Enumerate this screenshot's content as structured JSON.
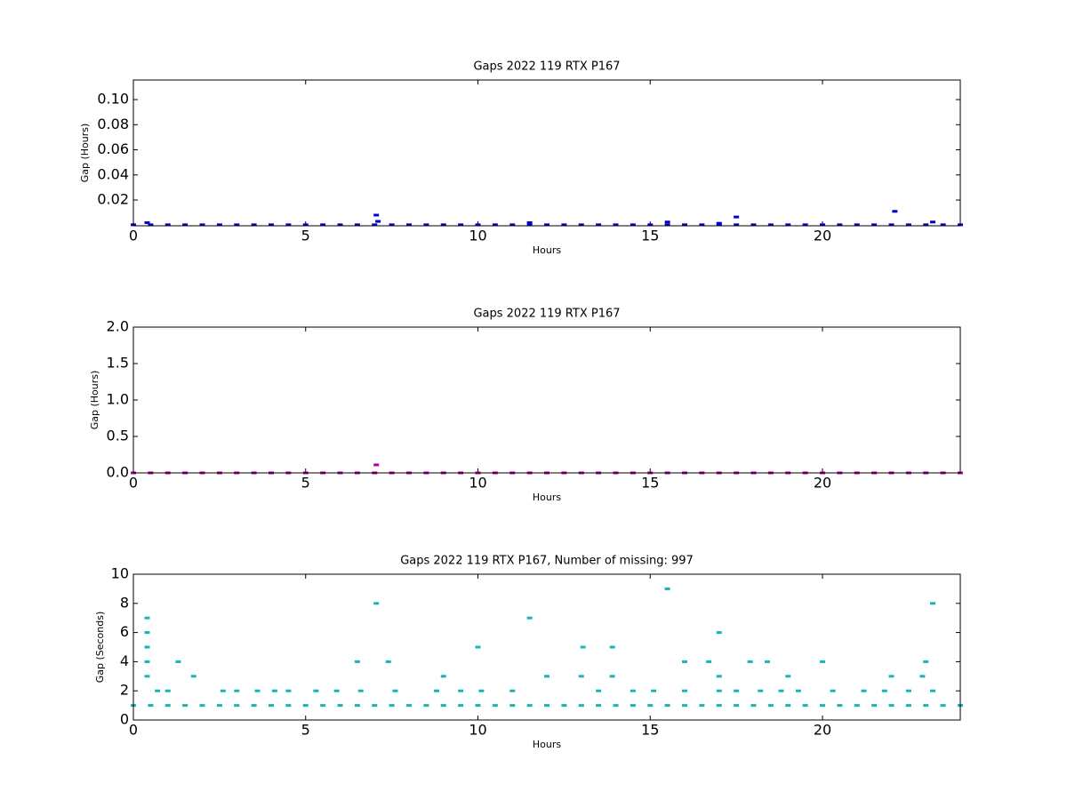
{
  "chart_data": [
    {
      "type": "scatter",
      "title": "Gaps 2022 119 RTX  P167",
      "xlabel": "Hours",
      "ylabel": "Gap (Hours)",
      "color": "#0000cc",
      "xlim": [
        0,
        24
      ],
      "ylim": [
        -0.0005,
        0.1156
      ],
      "xticks": [
        0,
        5,
        10,
        15,
        20
      ],
      "yticks": [
        0.02,
        0.04,
        0.06,
        0.08,
        {
          "value": 0.1,
          "label": "0.10"
        }
      ],
      "x": [
        0,
        0.5,
        1,
        1.5,
        2,
        2.5,
        3,
        3.5,
        4,
        4.5,
        5,
        5.5,
        6,
        6.5,
        7,
        7.5,
        8,
        8.5,
        9,
        9.5,
        10,
        10.5,
        11,
        11.5,
        12,
        12.5,
        13,
        13.5,
        14,
        14.5,
        15,
        15.5,
        16,
        16.5,
        17,
        17.5,
        18,
        18.5,
        19,
        19.5,
        20,
        20.5,
        21,
        21.5,
        22,
        22.5,
        23,
        23.5,
        24,
        0.4,
        7.05,
        7.1,
        11.5,
        15.5,
        17,
        17.5,
        22.1,
        23.2
      ],
      "values": [
        0.0003,
        0.0003,
        0.0003,
        0.0003,
        0.0003,
        0.0003,
        0.0003,
        0.0003,
        0.0003,
        0.0003,
        0.0003,
        0.0003,
        0.0003,
        0.0003,
        0.0003,
        0.0003,
        0.0003,
        0.0003,
        0.0003,
        0.0003,
        0.0003,
        0.0003,
        0.0003,
        0.0003,
        0.0003,
        0.0003,
        0.0003,
        0.0003,
        0.0003,
        0.0003,
        0.0003,
        0.0003,
        0.0003,
        0.0003,
        0.0003,
        0.0003,
        0.0003,
        0.0003,
        0.0003,
        0.0003,
        0.0003,
        0.0003,
        0.0003,
        0.0003,
        0.0003,
        0.0003,
        0.0003,
        0.0003,
        0.0003,
        0.002,
        0.008,
        0.003,
        0.002,
        0.0025,
        0.0015,
        0.0065,
        0.011,
        0.0025
      ]
    },
    {
      "type": "scatter",
      "title": "Gaps 2022 119 RTX  P167",
      "xlabel": "Hours",
      "ylabel": "Gap (Hours)",
      "color": "#aa00aa",
      "xlim": [
        0,
        24
      ],
      "ylim": [
        0,
        2
      ],
      "xticks": [
        0,
        5,
        10,
        15,
        20
      ],
      "yticks": [
        {
          "value": 0,
          "label": "0.0"
        },
        0.5,
        {
          "value": 1,
          "label": "1.0"
        },
        1.5,
        {
          "value": 2,
          "label": "2.0"
        }
      ],
      "x": [
        0,
        0.5,
        1,
        1.5,
        2,
        2.5,
        3,
        3.5,
        4,
        4.5,
        5,
        5.5,
        6,
        6.5,
        7,
        7.5,
        8,
        8.5,
        9,
        9.5,
        10,
        10.5,
        11,
        11.5,
        12,
        12.5,
        13,
        13.5,
        14,
        14.5,
        15,
        15.5,
        16,
        16.5,
        17,
        17.5,
        18,
        18.5,
        19,
        19.5,
        20,
        20.5,
        21,
        21.5,
        22,
        22.5,
        23,
        23.5,
        24,
        7.05
      ],
      "values": [
        0.0003,
        0.0003,
        0.0003,
        0.0003,
        0.0003,
        0.0003,
        0.0003,
        0.0003,
        0.0003,
        0.0003,
        0.0003,
        0.0003,
        0.0003,
        0.0003,
        0.0003,
        0.0003,
        0.0003,
        0.0003,
        0.0003,
        0.0003,
        0.0003,
        0.0003,
        0.0003,
        0.0003,
        0.0003,
        0.0003,
        0.0003,
        0.0003,
        0.0003,
        0.0003,
        0.0003,
        0.0003,
        0.0003,
        0.0003,
        0.0003,
        0.0003,
        0.0003,
        0.0003,
        0.0003,
        0.0003,
        0.0003,
        0.0003,
        0.0003,
        0.0003,
        0.0003,
        0.0003,
        0.0003,
        0.0003,
        0.0003,
        0.11
      ]
    },
    {
      "type": "scatter",
      "title": "Gaps 2022 119 RTX  P167, Number of missing: 997",
      "xlabel": "Hours",
      "ylabel": "Gap (Seconds)",
      "color": "#1ab4b4",
      "xlim": [
        0,
        24
      ],
      "ylim": [
        0,
        10
      ],
      "xticks": [
        0,
        5,
        10,
        15,
        20
      ],
      "yticks": [
        0,
        2,
        4,
        6,
        8,
        10
      ],
      "x": [
        0,
        0.5,
        1,
        1.5,
        2,
        2.5,
        3,
        3.5,
        4,
        4.5,
        5,
        5.5,
        6,
        6.5,
        7,
        7.5,
        8,
        8.5,
        9,
        9.5,
        10,
        10.5,
        11,
        11.5,
        12,
        12.5,
        13,
        13.5,
        14,
        14.5,
        15,
        15.5,
        16,
        16.5,
        17,
        17.5,
        18,
        18.5,
        19,
        19.5,
        20,
        20.5,
        21,
        21.5,
        22,
        22.5,
        23,
        23.5,
        24,
        0.4,
        0.4,
        0.4,
        0.4,
        0.4,
        0.7,
        1.0,
        1.3,
        1.75,
        2.6,
        3.0,
        3.6,
        4.1,
        4.5,
        5.3,
        5.9,
        6.5,
        6.6,
        7.05,
        7.4,
        7.6,
        8.8,
        9.0,
        9.5,
        10.0,
        10.1,
        11.0,
        11.5,
        12.0,
        13.0,
        13.05,
        13.5,
        13.9,
        13.9,
        14.5,
        15.1,
        15.5,
        16.0,
        16.0,
        16.7,
        17.0,
        17.0,
        17.0,
        17.5,
        17.9,
        18.2,
        18.4,
        18.8,
        19.0,
        19.3,
        20.0,
        20.3,
        21.2,
        21.8,
        22.0,
        22.5,
        22.9,
        23.0,
        23.2,
        23.2
      ],
      "values": [
        1,
        1,
        1,
        1,
        1,
        1,
        1,
        1,
        1,
        1,
        1,
        1,
        1,
        1,
        1,
        1,
        1,
        1,
        1,
        1,
        1,
        1,
        1,
        1,
        1,
        1,
        1,
        1,
        1,
        1,
        1,
        1,
        1,
        1,
        1,
        1,
        1,
        1,
        1,
        1,
        1,
        1,
        1,
        1,
        1,
        1,
        1,
        1,
        1,
        7,
        6,
        5,
        4,
        3,
        2,
        2,
        4,
        3,
        2,
        2,
        2,
        2,
        2,
        2,
        2,
        4,
        2,
        8,
        4,
        2,
        2,
        3,
        2,
        5,
        2,
        2,
        7,
        3,
        3,
        5,
        2,
        5,
        3,
        2,
        2,
        9,
        4,
        2,
        4,
        6,
        3,
        2,
        2,
        4,
        2,
        4,
        2,
        3,
        2,
        4,
        2,
        2,
        2,
        3,
        2,
        3,
        4,
        8,
        2
      ]
    }
  ]
}
